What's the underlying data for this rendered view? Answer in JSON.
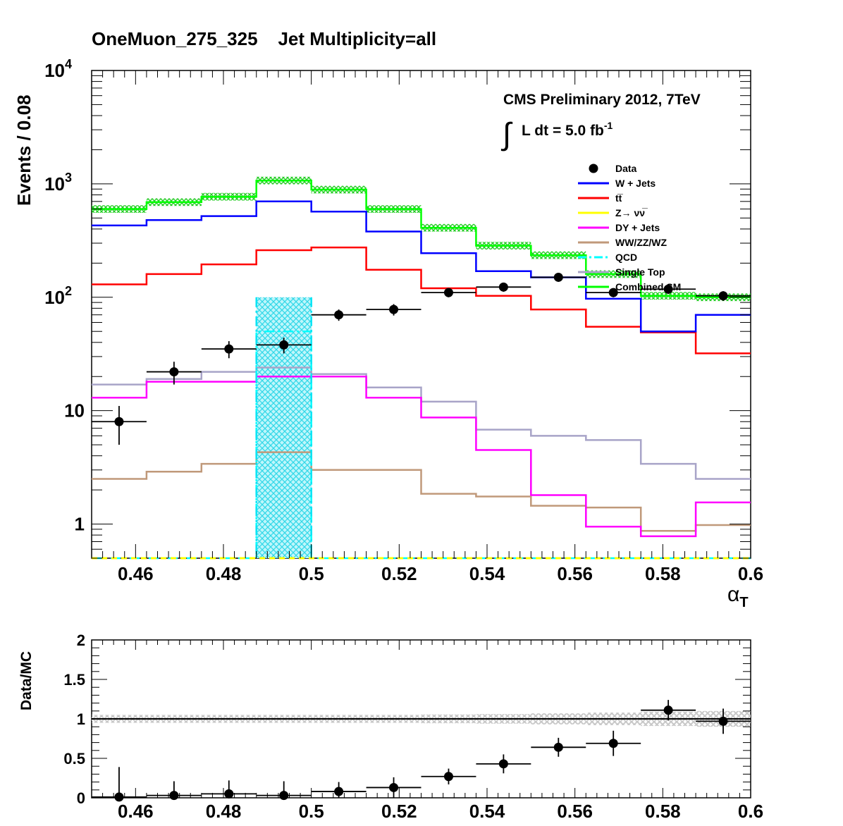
{
  "header": {
    "title": "OneMuon_275_325    Jet Multiplicity=all"
  },
  "annotation": {
    "experiment": "CMS Preliminary 2012, 7TeV",
    "lumi_text": "L dt = 5.0 fb",
    "lumi_exp": "-1"
  },
  "legend": [
    {
      "label": "Data",
      "color": "#000000",
      "style": "marker"
    },
    {
      "label": "W + Jets",
      "color": "#0000ff",
      "style": "line"
    },
    {
      "label": "tt̅",
      "color": "#ff0000",
      "style": "line"
    },
    {
      "label": "Z→ νν̅",
      "color": "#ffff00",
      "style": "line"
    },
    {
      "label": "DY + Jets",
      "color": "#ff00ff",
      "style": "line"
    },
    {
      "label": "WW/ZZ/WZ",
      "color": "#c0997a",
      "style": "line"
    },
    {
      "label": "QCD",
      "color": "#00ffff",
      "style": "dashdot"
    },
    {
      "label": "Single Top",
      "color": "#a8a4c8",
      "style": "line"
    },
    {
      "label": "Combined SM",
      "color": "#00ff00",
      "style": "line"
    }
  ],
  "chart_data": [
    {
      "type": "line",
      "title": "OneMuon_275_325    Jet Multiplicity=all",
      "xlabel": "α",
      "xlabel_sub": "T",
      "ylabel": "Events / 0.08",
      "xlim": [
        0.45,
        0.6
      ],
      "ylim": [
        0.5,
        10000
      ],
      "yscale": "log",
      "x_ticks": [
        "0.46",
        "0.48",
        "0.5",
        "0.52",
        "0.54",
        "0.56",
        "0.58",
        "0.6"
      ],
      "y_ticks": [
        {
          "value": 1,
          "base": "1",
          "exp": ""
        },
        {
          "value": 10,
          "base": "10",
          "exp": ""
        },
        {
          "value": 100,
          "base": "10",
          "exp": "2"
        },
        {
          "value": 1000,
          "base": "10",
          "exp": "3"
        },
        {
          "value": 10000,
          "base": "10",
          "exp": "4"
        }
      ],
      "bin_edges": [
        0.45,
        0.4625,
        0.475,
        0.4875,
        0.5,
        0.5125,
        0.525,
        0.5375,
        0.55,
        0.5625,
        0.575,
        0.5875,
        0.6
      ],
      "series": [
        {
          "name": "W + Jets",
          "color": "#0000ff",
          "values": [
            430,
            480,
            520,
            700,
            570,
            380,
            245,
            170,
            150,
            97,
            50,
            70
          ]
        },
        {
          "name": "tt̅",
          "color": "#ff0000",
          "values": [
            130,
            160,
            195,
            260,
            275,
            175,
            120,
            103,
            78,
            55,
            49,
            32
          ]
        },
        {
          "name": "Z→ νν̅",
          "color": "#ffff00",
          "values": [
            0.5,
            0.5,
            0.5,
            0.5,
            0.5,
            0.5,
            0.5,
            0.5,
            0.5,
            0.5,
            0.5,
            0.5
          ]
        },
        {
          "name": "DY + Jets",
          "color": "#ff00ff",
          "values": [
            13,
            18,
            18,
            20,
            20,
            13,
            8.7,
            4.5,
            1.8,
            0.95,
            0.78,
            1.55
          ]
        },
        {
          "name": "WW/ZZ/WZ",
          "color": "#c0997a",
          "values": [
            2.5,
            2.9,
            3.4,
            4.3,
            3.0,
            3.0,
            1.85,
            1.75,
            1.45,
            1.4,
            0.87,
            0.98
          ]
        },
        {
          "name": "QCD",
          "color": "#00ffff",
          "values": [
            0.5,
            0.5,
            0.5,
            50,
            0.5,
            0.5,
            0.5,
            0.5,
            0.5,
            0.5,
            0.5,
            0.5
          ]
        },
        {
          "name": "Single Top",
          "color": "#a8a4c8",
          "values": [
            17,
            19,
            22,
            24,
            21,
            16,
            12,
            6.8,
            6.0,
            5.5,
            3.4,
            2.5
          ]
        },
        {
          "name": "Combined SM",
          "color": "#00ff00",
          "values": [
            600,
            690,
            770,
            1070,
            890,
            600,
            410,
            285,
            235,
            160,
            103,
            100
          ]
        }
      ],
      "qcd_band": {
        "bin": 3,
        "low": 0.5,
        "high": 100
      },
      "data_points": [
        {
          "x": 0.45625,
          "y": 8,
          "err_low": 3,
          "err_high": 3
        },
        {
          "x": 0.46875,
          "y": 22,
          "err_low": 5,
          "err_high": 5
        },
        {
          "x": 0.48125,
          "y": 35,
          "err_low": 6,
          "err_high": 6
        },
        {
          "x": 0.49375,
          "y": 38,
          "err_low": 6,
          "err_high": 6
        },
        {
          "x": 0.50625,
          "y": 70,
          "err_low": 8,
          "err_high": 8
        },
        {
          "x": 0.51875,
          "y": 78,
          "err_low": 9,
          "err_high": 9
        },
        {
          "x": 0.53125,
          "y": 110,
          "err_low": 10,
          "err_high": 10
        },
        {
          "x": 0.54375,
          "y": 123,
          "err_low": 11,
          "err_high": 11
        },
        {
          "x": 0.55625,
          "y": 150,
          "err_low": 12,
          "err_high": 12
        },
        {
          "x": 0.56875,
          "y": 110,
          "err_low": 10,
          "err_high": 10
        },
        {
          "x": 0.58125,
          "y": 118,
          "err_low": 11,
          "err_high": 11
        },
        {
          "x": 0.59375,
          "y": 103,
          "err_low": 10,
          "err_high": 10
        }
      ]
    },
    {
      "type": "scatter",
      "xlabel": "",
      "ylabel": "Data/MC",
      "xlim": [
        0.45,
        0.6
      ],
      "ylim": [
        0,
        2
      ],
      "x_ticks": [
        "0.46",
        "0.48",
        "0.5",
        "0.52",
        "0.54",
        "0.56",
        "0.58",
        "0.6"
      ],
      "y_ticks": [
        "0",
        "0.5",
        "1",
        "1.5",
        "2"
      ],
      "reference_line": 1,
      "band_halfwidth": [
        0.05,
        0.05,
        0.05,
        0.05,
        0.05,
        0.05,
        0.055,
        0.06,
        0.07,
        0.08,
        0.09,
        0.1
      ],
      "points": [
        {
          "x": 0.45625,
          "y": 0.01,
          "err": 0.38
        },
        {
          "x": 0.46875,
          "y": 0.03,
          "err": 0.18
        },
        {
          "x": 0.48125,
          "y": 0.05,
          "err": 0.17
        },
        {
          "x": 0.49375,
          "y": 0.03,
          "err": 0.18
        },
        {
          "x": 0.50625,
          "y": 0.08,
          "err": 0.12
        },
        {
          "x": 0.51875,
          "y": 0.13,
          "err": 0.13
        },
        {
          "x": 0.53125,
          "y": 0.27,
          "err": 0.1
        },
        {
          "x": 0.54375,
          "y": 0.43,
          "err": 0.12
        },
        {
          "x": 0.55625,
          "y": 0.64,
          "err": 0.12
        },
        {
          "x": 0.56875,
          "y": 0.69,
          "err": 0.16
        },
        {
          "x": 0.58125,
          "y": 1.11,
          "err": 0.13
        },
        {
          "x": 0.59375,
          "y": 0.97,
          "err": 0.16
        }
      ]
    }
  ]
}
